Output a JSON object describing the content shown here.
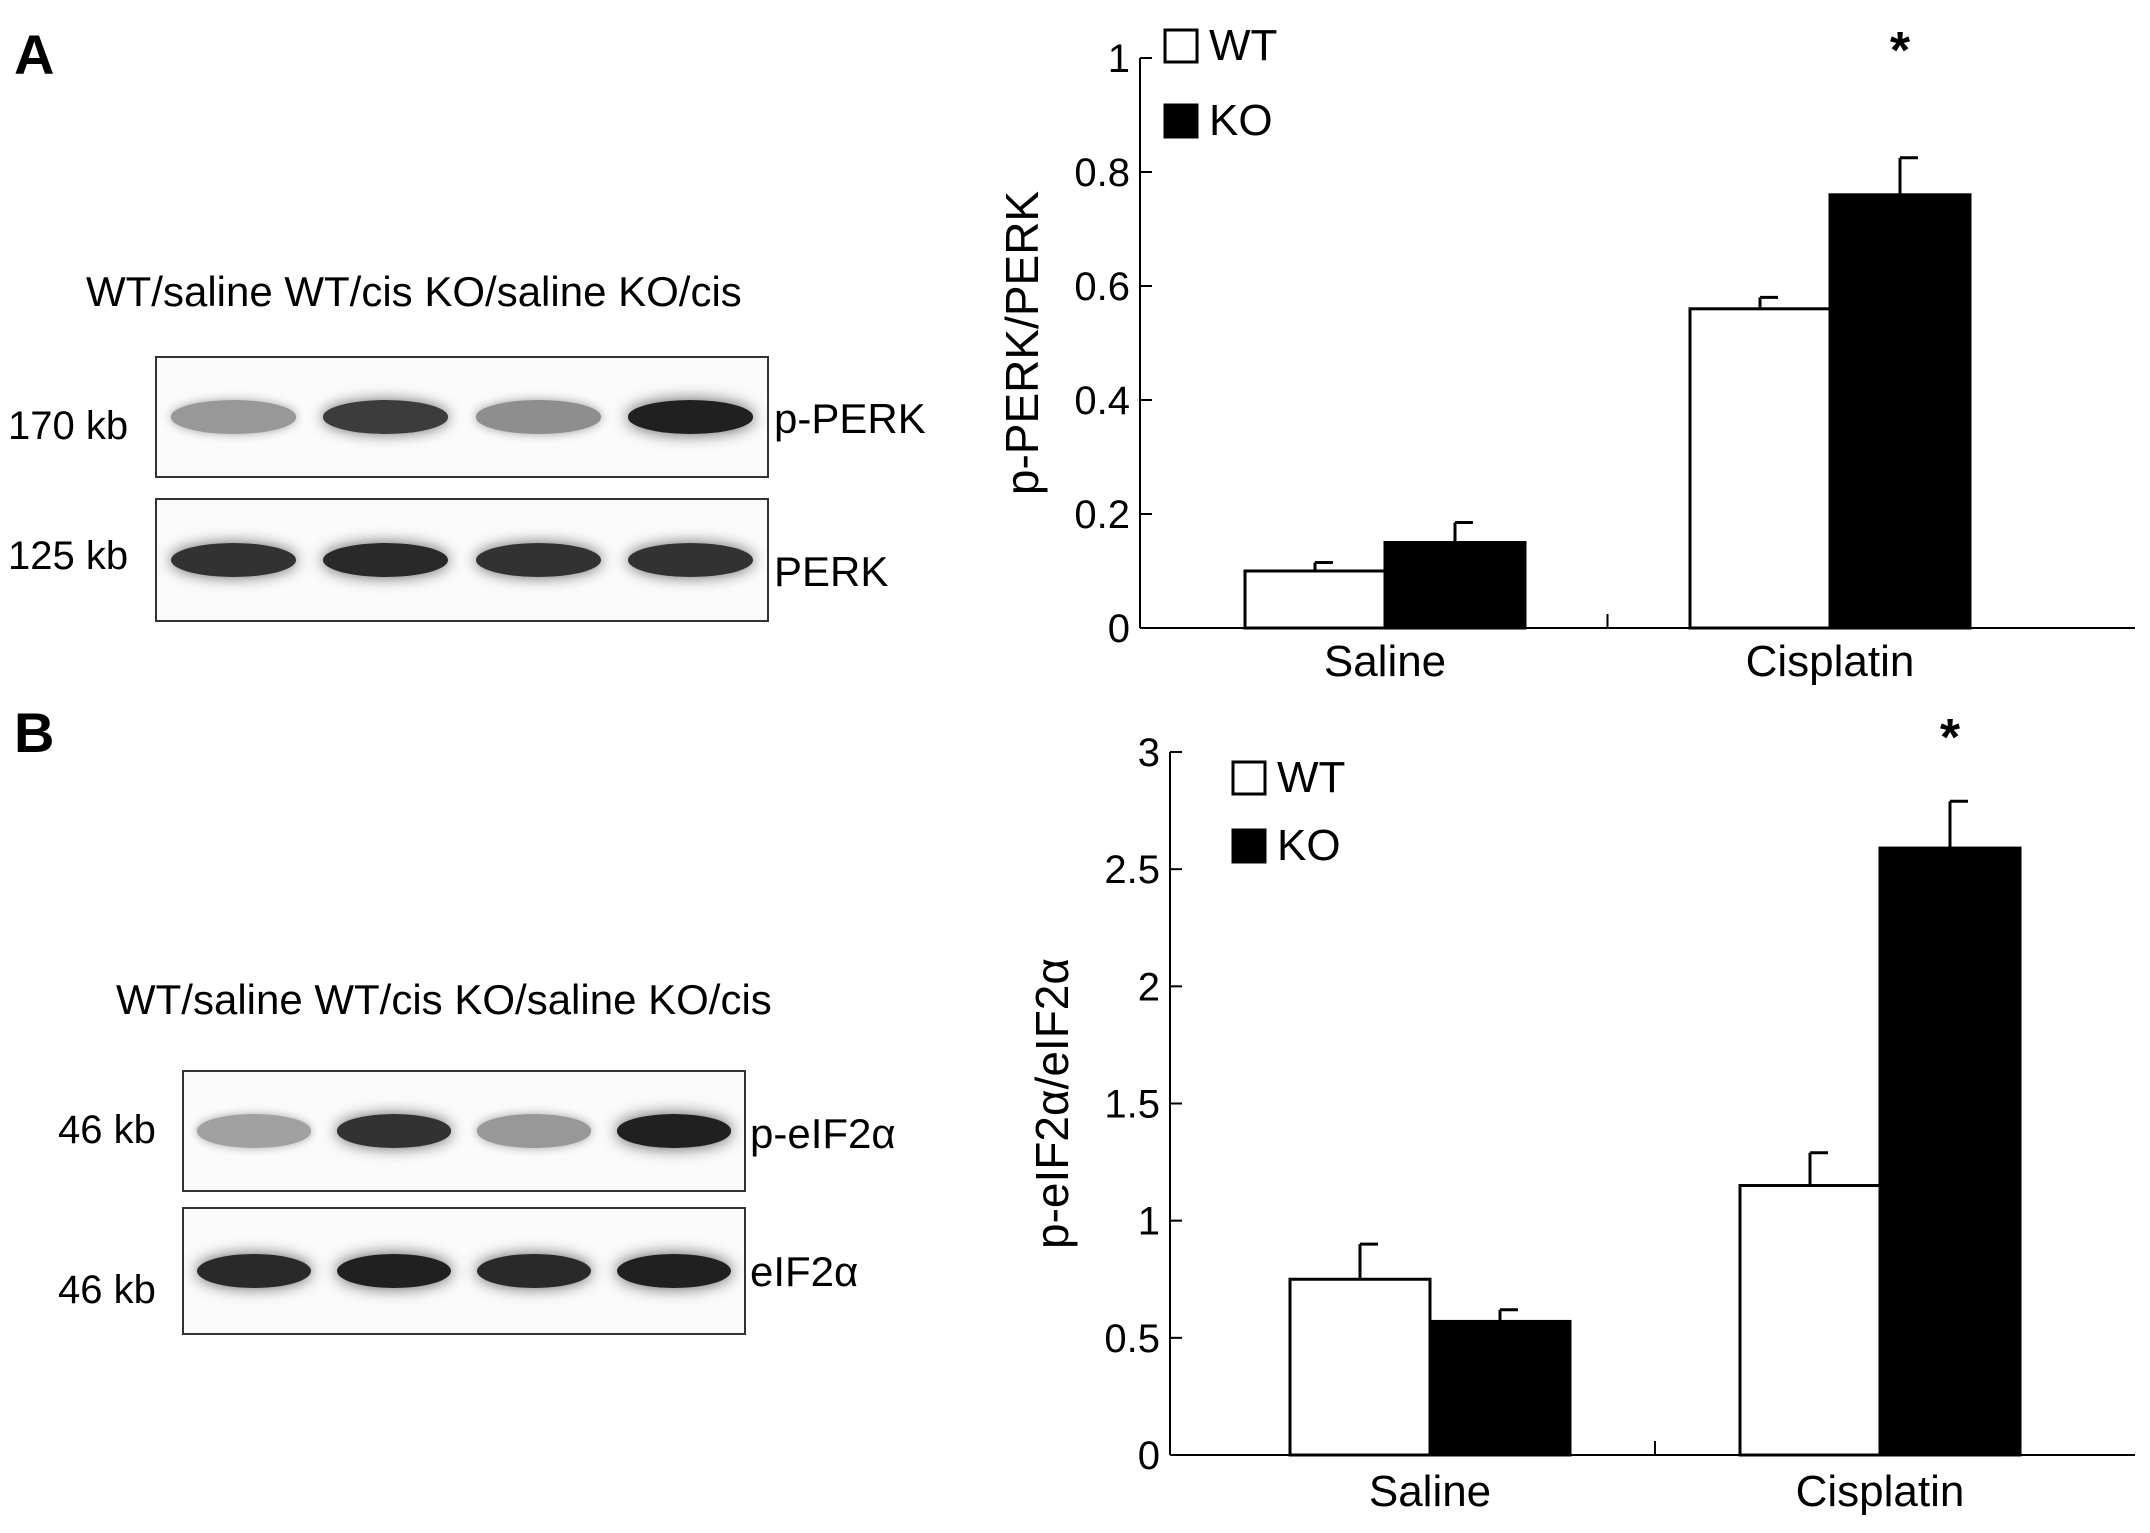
{
  "panels": {
    "A": {
      "label": "A",
      "blot": {
        "lane_header": "WT/saline WT/cis KO/saline KO/cis",
        "rows": [
          {
            "mw": "170 kb",
            "protein": "p-PERK",
            "intensities": [
              0.35,
              0.85,
              0.4,
              1.0
            ]
          },
          {
            "mw": "125 kb",
            "protein": "PERK",
            "intensities": [
              0.9,
              0.95,
              0.9,
              0.9
            ]
          }
        ]
      }
    },
    "B": {
      "label": "B",
      "blot": {
        "lane_header": "WT/saline WT/cis KO/saline KO/cis",
        "rows": [
          {
            "mw": "46 kb",
            "protein": "p-eIF2α",
            "intensities": [
              0.3,
              0.9,
              0.35,
              1.0
            ]
          },
          {
            "mw": "46 kb",
            "protein": "eIF2α",
            "intensities": [
              0.95,
              1.0,
              0.95,
              1.0
            ]
          }
        ]
      }
    }
  },
  "chart_data": [
    {
      "type": "bar",
      "panel": "A",
      "categories": [
        "Saline",
        "Cisplatin"
      ],
      "series": [
        {
          "name": "WT",
          "color": "#ffffff",
          "values": [
            0.1,
            0.56
          ],
          "errors": [
            0.015,
            0.02
          ]
        },
        {
          "name": "KO",
          "color": "#000000",
          "values": [
            0.15,
            0.76
          ],
          "errors": [
            0.035,
            0.065
          ]
        }
      ],
      "ylabel": "p-PERK/PERK",
      "ylim": [
        0,
        1
      ],
      "yticks": [
        0,
        0.2,
        0.4,
        0.6,
        0.8,
        1
      ],
      "ytick_labels": [
        "0",
        "0.2",
        "0.4",
        "0.6",
        "0.8",
        "1"
      ],
      "significance": [
        {
          "category": "Cisplatin",
          "series": "KO",
          "mark": "*"
        }
      ],
      "legend_position": "top-left"
    },
    {
      "type": "bar",
      "panel": "B",
      "categories": [
        "Saline",
        "Cisplatin"
      ],
      "series": [
        {
          "name": "WT",
          "color": "#ffffff",
          "values": [
            0.75,
            1.15
          ],
          "errors": [
            0.15,
            0.14
          ]
        },
        {
          "name": "KO",
          "color": "#000000",
          "values": [
            0.57,
            2.59
          ],
          "errors": [
            0.05,
            0.2
          ]
        }
      ],
      "ylabel": "p-eIF2α/eIF2α",
      "ylim": [
        0,
        3
      ],
      "yticks": [
        0,
        0.5,
        1,
        1.5,
        2,
        2.5,
        3
      ],
      "ytick_labels": [
        "0",
        "0.5",
        "1",
        "1.5",
        "2",
        "2.5",
        "3"
      ],
      "significance": [
        {
          "category": "Cisplatin",
          "series": "KO",
          "mark": "*"
        }
      ],
      "legend_position": "top-left"
    }
  ]
}
